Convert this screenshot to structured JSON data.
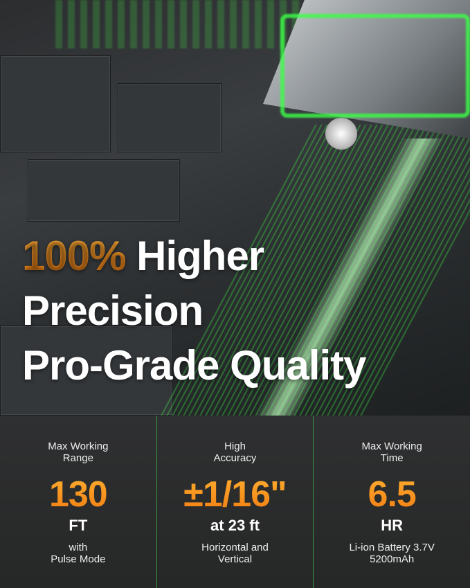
{
  "headline": {
    "accent": "100%",
    "line1_rest": " Higher",
    "line2": "Precision",
    "line3": "Pro-Grade Quality"
  },
  "colors": {
    "accent": "#f7901e",
    "laser": "#3cff48",
    "background": "#2a2a2a"
  },
  "specs": [
    {
      "label_1": "Max Working",
      "label_2": "Range",
      "value": "130",
      "unit": "FT",
      "note_1": "with",
      "note_2": "Pulse Mode"
    },
    {
      "label_1": "High",
      "label_2": "Accuracy",
      "value": "±1/16\"",
      "unit": "at 23 ft",
      "note_1": "Horizontal and",
      "note_2": "Vertical"
    },
    {
      "label_1": "Max Working",
      "label_2": "Time",
      "value": "6.5",
      "unit": "HR",
      "note_1": "Li-ion Battery 3.7V",
      "note_2": "5200mAh"
    }
  ]
}
